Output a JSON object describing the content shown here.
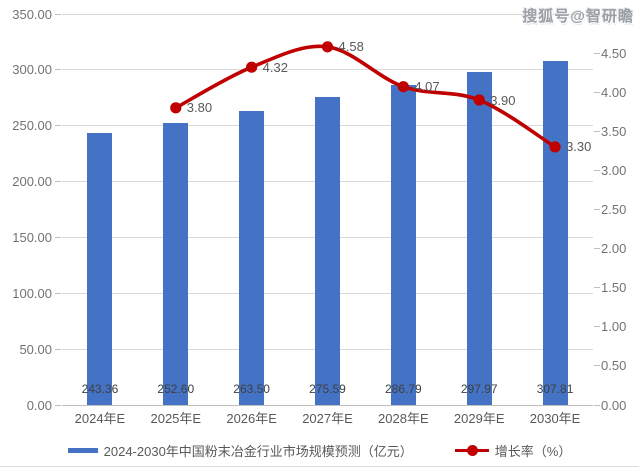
{
  "watermark": "搜狐号@智研瞻",
  "chart_data": {
    "type": "bar+line",
    "categories": [
      "2024年E",
      "2025年E",
      "2026年E",
      "2027年E",
      "2028年E",
      "2029年E",
      "2030年E"
    ],
    "series": [
      {
        "name": "2024-2030年中国粉末冶金行业市场规模预测（亿元）",
        "kind": "bar",
        "axis": "left",
        "color": "#4472C4",
        "values": [
          243.36,
          252.6,
          263.5,
          275.59,
          286.79,
          297.97,
          307.81
        ],
        "labels": [
          "243.36",
          "252.60",
          "263.50",
          "275.59",
          "286.79",
          "297.97",
          "307.81"
        ]
      },
      {
        "name": "增长率（%）",
        "kind": "line",
        "axis": "right",
        "color": "#C00000",
        "values": [
          null,
          3.8,
          4.32,
          4.58,
          4.07,
          3.9,
          3.3
        ],
        "labels": [
          "",
          "3.80",
          "4.32",
          "4.58",
          "4.07",
          "3.90",
          "3.30"
        ]
      }
    ],
    "axes": {
      "left": {
        "min": 0,
        "max": 350,
        "step": 50,
        "tick_labels": [
          "0.00",
          "50.00",
          "100.00",
          "150.00",
          "200.00",
          "250.00",
          "300.00",
          "350.00"
        ]
      },
      "right": {
        "min": 0,
        "max": 5,
        "step": 0.5,
        "tick_labels": [
          "0.00",
          "0.50",
          "1.00",
          "1.50",
          "2.00",
          "2.50",
          "3.00",
          "3.50",
          "4.00",
          "4.50"
        ]
      }
    },
    "grid": true,
    "legend_position": "bottom",
    "colors": {
      "bar": "#4472C4",
      "line": "#C00000",
      "gridline": "#D9D9D9",
      "axis_line": "#BFBFBF",
      "tick_label": "#737373",
      "data_label": "#595959"
    }
  }
}
